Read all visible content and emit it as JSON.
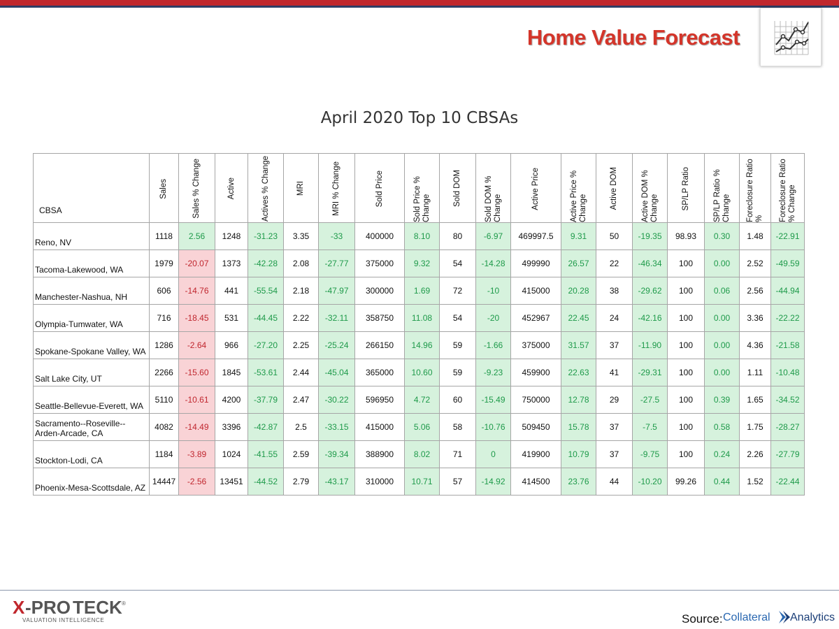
{
  "header": {
    "brand_title": "Home Value Forecast"
  },
  "page_title": "April 2020 Top 10 CBSAs",
  "colors": {
    "red_bar": "#c0272d",
    "navy_bar": "#2e3e66",
    "positive_bg": "#d6f2dd",
    "positive_text": "#1e9a4a",
    "negative_bg": "#f9d3d6",
    "negative_text": "#c0262e"
  },
  "table": {
    "columns": [
      "CBSA",
      "Sales",
      "Sales % Change",
      "Active",
      "Actives % Change",
      "MRI",
      "MRI % Change",
      "Sold Price",
      "Sold Price % Change",
      "Sold DOM",
      "Sold DOM % Change",
      "Active Price",
      "Active Price % Change",
      "Active DOM",
      "Active DOM % Change",
      "SP/LP Ratio",
      "SP/LP Ratio % Change",
      "Foreclosure Ratio %",
      "Foreclosure Ratio % Change"
    ],
    "rows": [
      [
        "Reno, NV",
        "1118",
        "2.56",
        "1248",
        "-31.23",
        "3.35",
        "-33",
        "400000",
        "8.10",
        "80",
        "-6.97",
        "469997.5",
        "9.31",
        "50",
        "-19.35",
        "98.93",
        "0.30",
        "1.48",
        "-22.91"
      ],
      [
        "Tacoma-Lakewood, WA",
        "1979",
        "-20.07",
        "1373",
        "-42.28",
        "2.08",
        "-27.77",
        "375000",
        "9.32",
        "54",
        "-14.28",
        "499990",
        "26.57",
        "22",
        "-46.34",
        "100",
        "0.00",
        "2.52",
        "-49.59"
      ],
      [
        "Manchester-Nashua,  NH",
        "606",
        "-14.76",
        "441",
        "-55.54",
        "2.18",
        "-47.97",
        "300000",
        "1.69",
        "72",
        "-10",
        "415000",
        "20.28",
        "38",
        "-29.62",
        "100",
        "0.06",
        "2.56",
        "-44.94"
      ],
      [
        "Olympia-Tumwater, WA",
        "716",
        "-18.45",
        "531",
        "-44.45",
        "2.22",
        "-32.11",
        "358750",
        "11.08",
        "54",
        "-20",
        "452967",
        "22.45",
        "24",
        "-42.16",
        "100",
        "0.00",
        "3.36",
        "-22.22"
      ],
      [
        "Spokane-Spokane Valley, WA",
        "1286",
        "-2.64",
        "966",
        "-27.20",
        "2.25",
        "-25.24",
        "266150",
        "14.96",
        "59",
        "-1.66",
        "375000",
        "31.57",
        "37",
        "-11.90",
        "100",
        "0.00",
        "4.36",
        "-21.58"
      ],
      [
        "Salt Lake City, UT",
        "2266",
        "-15.60",
        "1845",
        "-53.61",
        "2.44",
        "-45.04",
        "365000",
        "10.60",
        "59",
        "-9.23",
        "459900",
        "22.63",
        "41",
        "-29.31",
        "100",
        "0.00",
        "1.11",
        "-10.48"
      ],
      [
        "Seattle-Bellevue-Everett, WA",
        "5110",
        "-10.61",
        "4200",
        "-37.79",
        "2.47",
        "-30.22",
        "596950",
        "4.72",
        "60",
        "-15.49",
        "750000",
        "12.78",
        "29",
        "-27.5",
        "100",
        "0.39",
        "1.65",
        "-34.52"
      ],
      [
        "Sacramento--Roseville--Arden-Arcade, CA",
        "4082",
        "-14.49",
        "3396",
        "-42.87",
        "2.5",
        "-33.15",
        "415000",
        "5.06",
        "58",
        "-10.76",
        "509450",
        "15.78",
        "37",
        "-7.5",
        "100",
        "0.58",
        "1.75",
        "-28.27"
      ],
      [
        "Stockton-Lodi, CA",
        "1184",
        "-3.89",
        "1024",
        "-41.55",
        "2.59",
        "-39.34",
        "388900",
        "8.02",
        "71",
        "0",
        "419900",
        "10.79",
        "37",
        "-9.75",
        "100",
        "0.24",
        "2.26",
        "-27.79"
      ],
      [
        "Phoenix-Mesa-Scottsdale, AZ",
        "14447",
        "-2.56",
        "13451",
        "-44.52",
        "2.79",
        "-43.17",
        "310000",
        "10.71",
        "57",
        "-14.92",
        "414500",
        "23.76",
        "44",
        "-10.20",
        "99.26",
        "0.44",
        "1.52",
        "-22.44"
      ]
    ]
  },
  "footer": {
    "logo_text": "X-PRO TECK",
    "logo_tagline": "VALUATION INTELLIGENCE",
    "source_label": "Source:",
    "source_name_a": "Collateral",
    "source_name_b": "Analytics"
  }
}
